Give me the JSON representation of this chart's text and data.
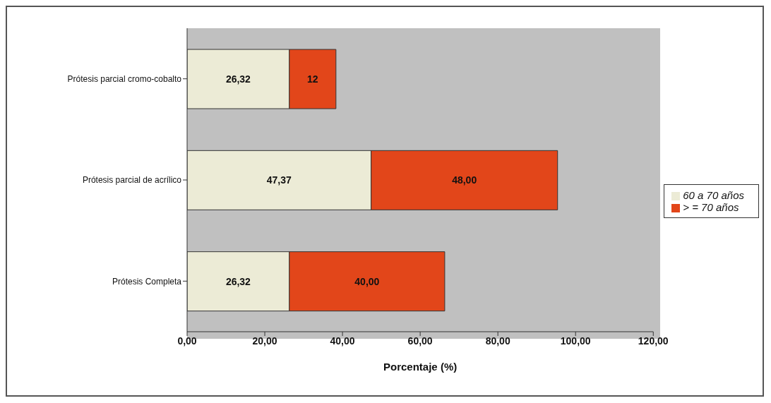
{
  "chart_data": {
    "type": "bar",
    "orientation": "horizontal",
    "stacked": true,
    "xlabel": "Porcentaje (%)",
    "legend": "right",
    "categories": [
      "Prótesis parcial cromo-cobalto",
      "Prótesis parcial de acrílico",
      "Prótesis Completa"
    ],
    "series": [
      {
        "name": "60 a 70 años",
        "color": "#ecebd6",
        "values": [
          26.32,
          47.37,
          26.32
        ],
        "value_labels": [
          "26,32",
          "47,37",
          "26,32"
        ]
      },
      {
        "name": "> = 70 años",
        "color": "#e2461a",
        "values": [
          12,
          48.0,
          40.0
        ],
        "value_labels": [
          "12",
          "48,00",
          "40,00"
        ]
      }
    ],
    "xlim": [
      0,
      120
    ],
    "xticks": [
      {
        "value": 0,
        "label": "0,00"
      },
      {
        "value": 20,
        "label": "20,00"
      },
      {
        "value": 40,
        "label": "40,00"
      },
      {
        "value": 60,
        "label": "60,00"
      },
      {
        "value": 80,
        "label": "80,00"
      },
      {
        "value": 100,
        "label": "100,00"
      },
      {
        "value": 120,
        "label": "120,00"
      }
    ]
  }
}
